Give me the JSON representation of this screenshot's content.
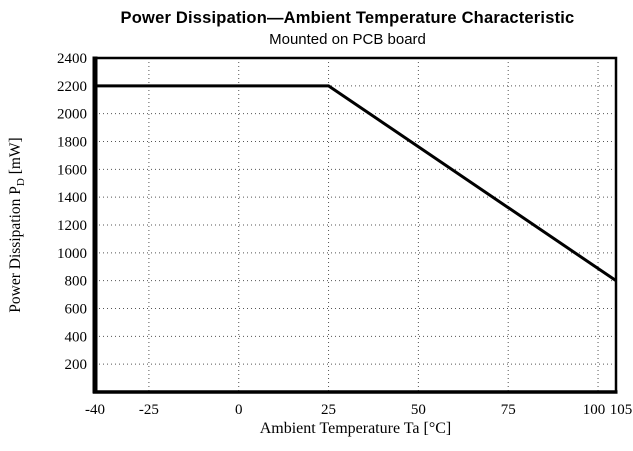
{
  "header": {
    "title": "Power Dissipation—Ambient Temperature Characteristic",
    "subtitle": "Mounted on PCB board"
  },
  "axis_labels": {
    "y_main": "Power Dissipation P",
    "y_sub": "D",
    "y_unit": " [mW]",
    "x": "Ambient Temperature Ta [°C]"
  },
  "chart_data": {
    "type": "line",
    "title": "Power Dissipation—Ambient Temperature Characteristic",
    "subtitle": "Mounted on PCB board",
    "xlabel": "Ambient Temperature Ta [°C]",
    "ylabel": "Power Dissipation PD [mW]",
    "series": [
      {
        "x": [
          -40,
          25,
          105
        ],
        "y": [
          2200,
          2200,
          800
        ]
      }
    ],
    "xlim": [
      -40,
      105
    ],
    "ylim": [
      0,
      2400
    ],
    "xticks": [
      -40,
      -25,
      0,
      25,
      50,
      75,
      100,
      105
    ],
    "yticks": [
      200,
      400,
      600,
      800,
      1000,
      1200,
      1400,
      1600,
      1800,
      2000,
      2200,
      2400
    ],
    "grid": "dotted",
    "legend": "none",
    "line_color": "#000000",
    "frame_color": "#000000",
    "background_color": "#ffffff"
  }
}
